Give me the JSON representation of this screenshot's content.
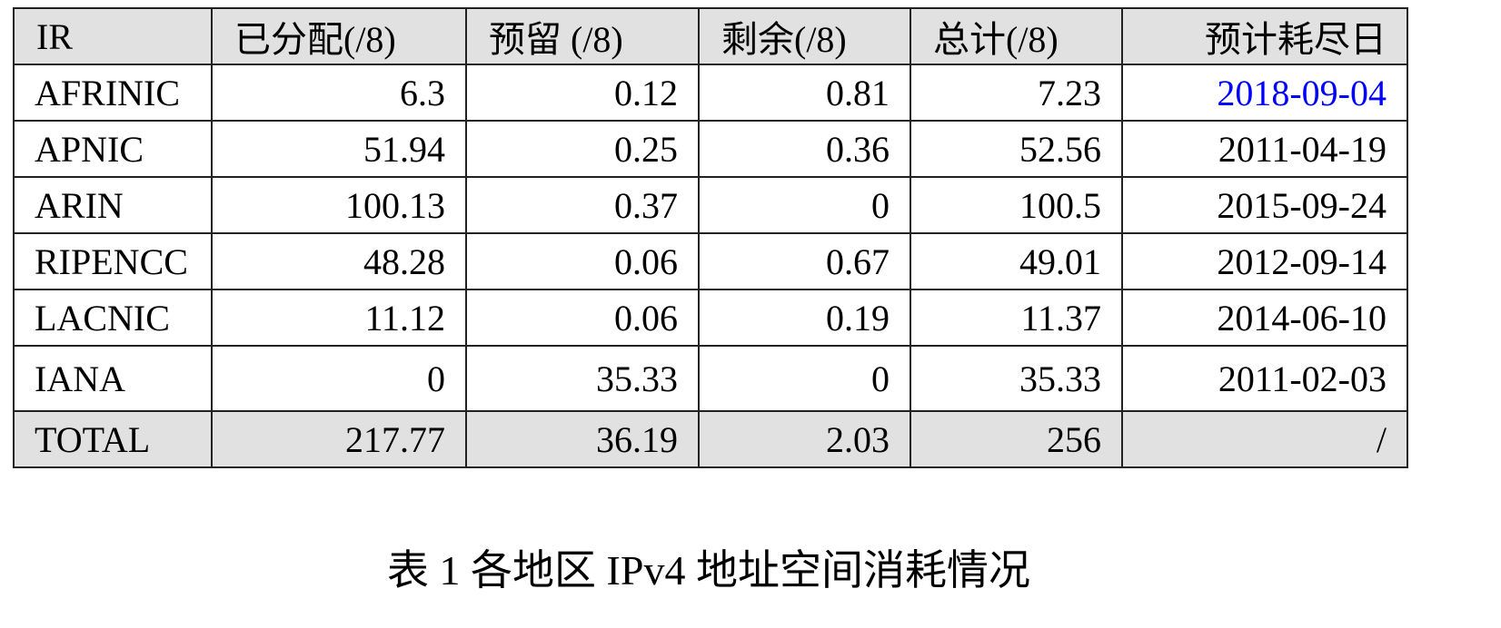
{
  "table": {
    "header": [
      "IR",
      "已分配(/8)",
      "预留 (/8)",
      "剩余(/8)",
      "总计(/8)",
      "预计耗尽日"
    ],
    "rows": [
      [
        "AFRINIC",
        "6.3",
        "0.12",
        "0.81",
        "7.23",
        "2018-09-04"
      ],
      [
        "APNIC",
        "51.94",
        "0.25",
        "0.36",
        "52.56",
        "2011-04-19"
      ],
      [
        "ARIN",
        "100.13",
        "0.37",
        "0",
        "100.5",
        "2015-09-24"
      ],
      [
        "RIPENCC",
        "48.28",
        "0.06",
        "0.67",
        "49.01",
        "2012-09-14"
      ],
      [
        "LACNIC",
        "11.12",
        "0.06",
        "0.19",
        "11.37",
        "2014-06-10"
      ],
      [
        "IANA",
        "0",
        "35.33",
        "0",
        "35.33",
        "2011-02-03"
      ]
    ],
    "total": [
      "TOTAL",
      "217.77",
      "36.19",
      "2.03",
      "256",
      "/"
    ]
  },
  "caption": "表 1  各地区 IPv4 地址空间消耗情况"
}
